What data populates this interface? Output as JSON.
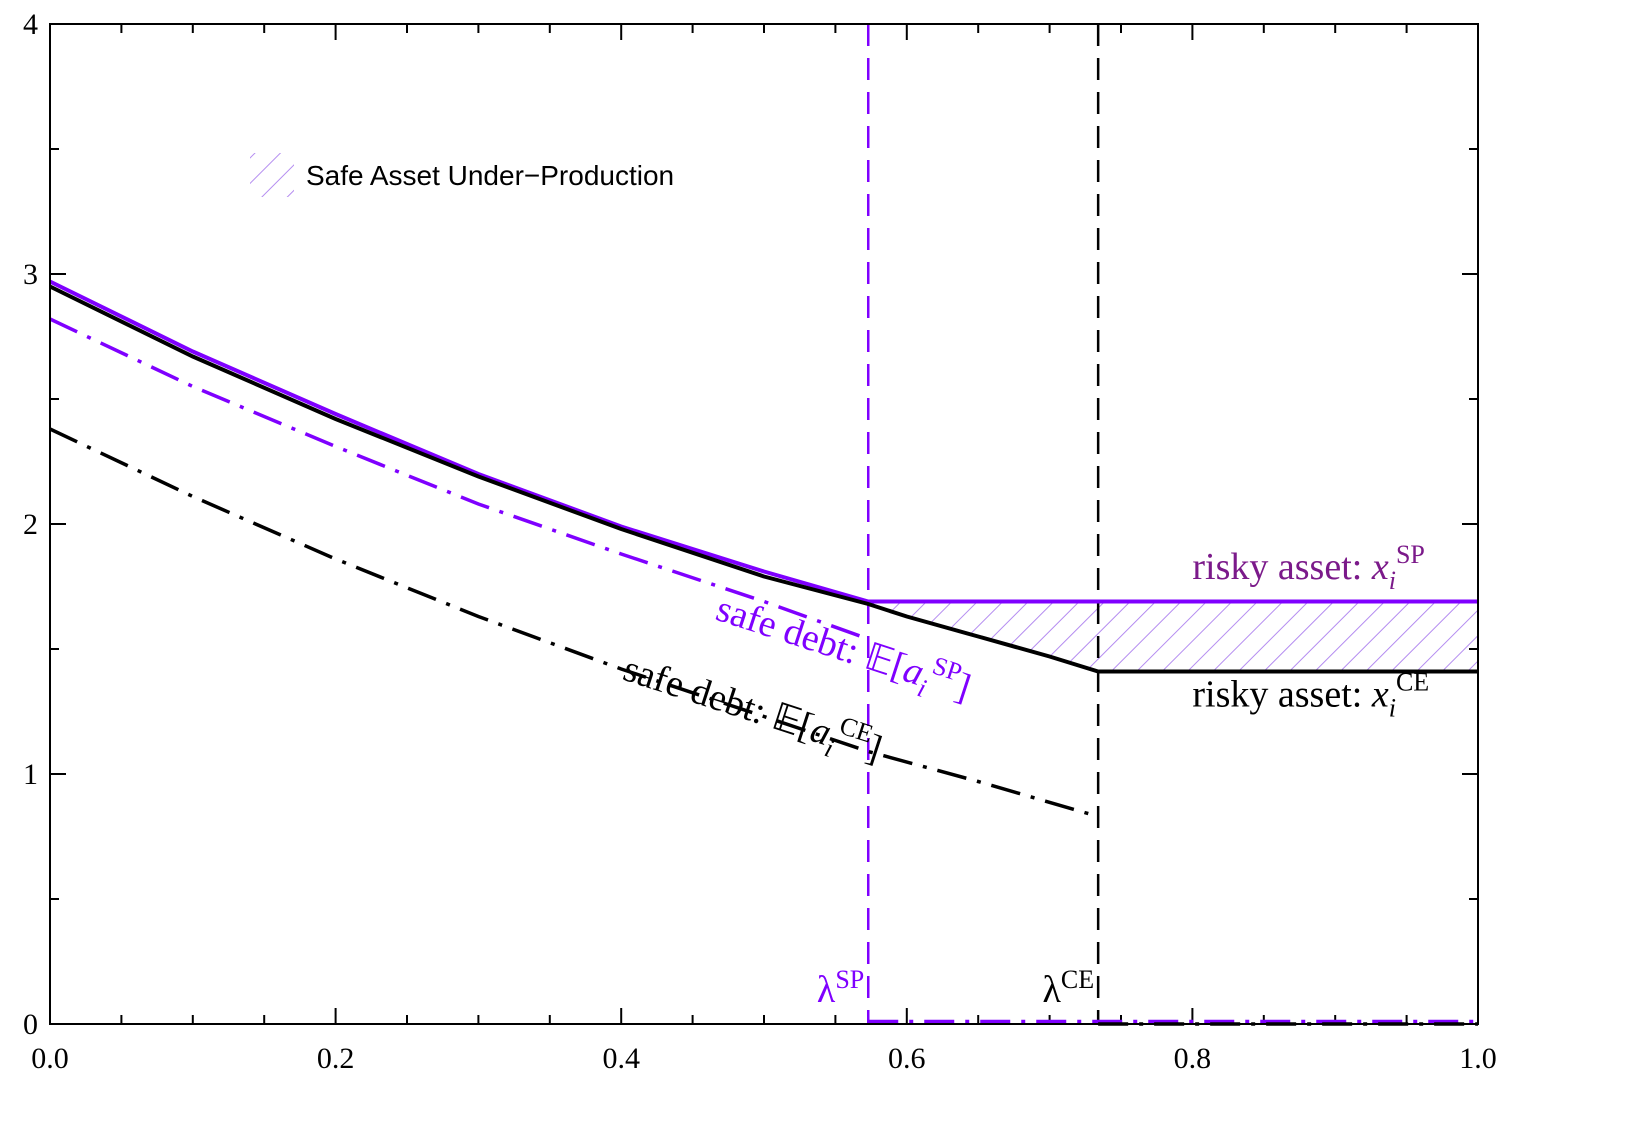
{
  "chart_data": {
    "type": "line",
    "xlim": [
      0,
      1
    ],
    "ylim": [
      0,
      4
    ],
    "x_ticks": [
      "0.0",
      "0.2",
      "0.4",
      "0.6",
      "0.8",
      "1.0"
    ],
    "x_tick_values": [
      0,
      0.2,
      0.4,
      0.6,
      0.8,
      1.0
    ],
    "y_ticks": [
      "0",
      "1",
      "2",
      "3",
      "4"
    ],
    "y_tick_values": [
      0,
      1,
      2,
      3,
      4
    ],
    "grid": false,
    "legend": {
      "position": "top-left",
      "label": "Safe Asset Under−Production"
    },
    "series": [
      {
        "id": "risky-sp",
        "color": "#7f00ff",
        "style": "solid",
        "points": [
          [
            0,
            2.97
          ],
          [
            0.1,
            2.69
          ],
          [
            0.2,
            2.44
          ],
          [
            0.3,
            2.2
          ],
          [
            0.4,
            1.99
          ],
          [
            0.5,
            1.81
          ],
          [
            0.573,
            1.69
          ],
          [
            1.0,
            1.69
          ]
        ]
      },
      {
        "id": "risky-ce",
        "color": "#000000",
        "style": "solid",
        "points": [
          [
            0,
            2.95
          ],
          [
            0.1,
            2.67
          ],
          [
            0.2,
            2.42
          ],
          [
            0.3,
            2.19
          ],
          [
            0.4,
            1.98
          ],
          [
            0.5,
            1.79
          ],
          [
            0.573,
            1.68
          ],
          [
            0.6,
            1.63
          ],
          [
            0.65,
            1.55
          ],
          [
            0.7,
            1.47
          ],
          [
            0.734,
            1.41
          ],
          [
            1.0,
            1.41
          ]
        ]
      },
      {
        "id": "safe-debt-sp",
        "color": "#7f00ff",
        "style": "dashdot",
        "points": [
          [
            0,
            2.82
          ],
          [
            0.1,
            2.55
          ],
          [
            0.2,
            2.31
          ],
          [
            0.3,
            2.08
          ],
          [
            0.4,
            1.88
          ],
          [
            0.5,
            1.69
          ],
          [
            0.573,
            1.54
          ]
        ]
      },
      {
        "id": "safe-debt-ce",
        "color": "#000000",
        "style": "dashdot",
        "points": [
          [
            0,
            2.38
          ],
          [
            0.1,
            2.11
          ],
          [
            0.2,
            1.86
          ],
          [
            0.3,
            1.63
          ],
          [
            0.4,
            1.42
          ],
          [
            0.5,
            1.23
          ],
          [
            0.573,
            1.09
          ],
          [
            0.65,
            0.97
          ],
          [
            0.734,
            0.83
          ]
        ]
      },
      {
        "id": "zero-sp",
        "color": "#7f00ff",
        "style": "dashdot",
        "points": [
          [
            0.573,
            0.01
          ],
          [
            1.0,
            0.01
          ]
        ]
      },
      {
        "id": "zero-ce",
        "color": "#000000",
        "style": "dashdot",
        "points": [
          [
            0.734,
            0.0
          ],
          [
            1.0,
            0.0
          ]
        ]
      }
    ],
    "vlines": [
      {
        "id": "lambda-sp",
        "x": 0.573,
        "color": "#7f00ff",
        "label_base": "λ",
        "label_sup": "SP"
      },
      {
        "id": "lambda-ce",
        "x": 0.734,
        "color": "#000000",
        "label_base": "λ",
        "label_sup": "CE"
      }
    ],
    "shaded_region": {
      "x_start": 0.573,
      "x_end": 1.0,
      "upper": "risky-sp",
      "lower": "risky-ce",
      "color": "#b48cf0"
    },
    "annotations": {
      "risky_sp": {
        "text": "risky asset: ",
        "var": "x",
        "sub": "i",
        "sup": "SP",
        "color": "#7b1a8a",
        "x": 0.8,
        "y": 1.78
      },
      "risky_ce": {
        "text": "risky asset: ",
        "var": "x",
        "sub": "i",
        "sup": "CE",
        "color": "#000000",
        "x": 0.8,
        "y": 1.27
      },
      "safe_sp": {
        "text": "safe debt: 𝔼[",
        "var": "a",
        "sub": "i",
        "sup": "SP",
        "close": "]",
        "color": "#7f00ff",
        "x": 0.465,
        "y": 1.62,
        "angle": 18
      },
      "safe_ce": {
        "text": "safe debt: 𝔼[",
        "var": "a",
        "sub": "i",
        "sup": "CE",
        "close": "]",
        "color": "#000000",
        "x": 0.4,
        "y": 1.38,
        "angle": 18
      }
    }
  }
}
